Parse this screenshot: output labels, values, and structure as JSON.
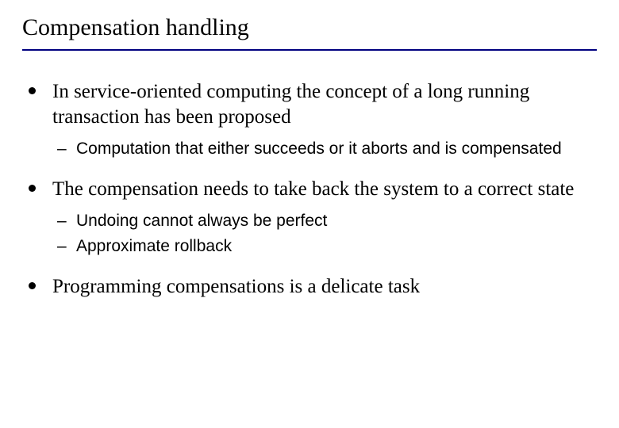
{
  "slide": {
    "title": "Compensation handling",
    "divider_color": "#000080",
    "bullets": [
      {
        "text": "In service-oriented computing the concept of a long running transaction has been proposed",
        "sub": [
          "Computation that either succeeds or it aborts and is compensated"
        ]
      },
      {
        "text": "The compensation needs to take back the system to a correct state",
        "sub": [
          "Undoing cannot always be perfect",
          "Approximate rollback"
        ]
      },
      {
        "text": "Programming compensations is a delicate task",
        "sub": []
      }
    ]
  }
}
